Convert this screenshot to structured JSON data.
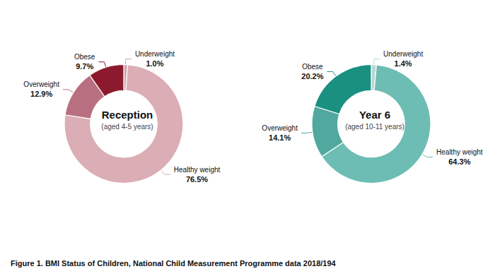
{
  "caption": "Figure 1. BMI Status of Children, National Child Measurement Programme data 2018/194",
  "chart_data": [
    {
      "type": "pie",
      "title": "Reception",
      "subtitle": "(aged 4-5 years)",
      "categories": [
        "Underweight",
        "Healthy weight",
        "Overweight",
        "Obese"
      ],
      "values": [
        1.0,
        76.5,
        12.9,
        9.7
      ],
      "value_labels": [
        "1.0%",
        "76.5%",
        "12.9%",
        "9.7%"
      ],
      "colors": [
        "#d4a0a8",
        "#dbadb5",
        "#b87080",
        "#8b1a2e"
      ],
      "data_labels": true
    },
    {
      "type": "pie",
      "title": "Year 6",
      "subtitle": "(aged 10-11 years)",
      "categories": [
        "Underweight",
        "Healthy weight",
        "Overweight",
        "Obese"
      ],
      "values": [
        1.4,
        64.3,
        14.1,
        20.2
      ],
      "value_labels": [
        "1.4%",
        "64.3%",
        "14.1%",
        "20.2%"
      ],
      "colors": [
        "#b8d8d4",
        "#6dbdb5",
        "#50a89e",
        "#1a9080"
      ],
      "data_labels": true
    }
  ]
}
